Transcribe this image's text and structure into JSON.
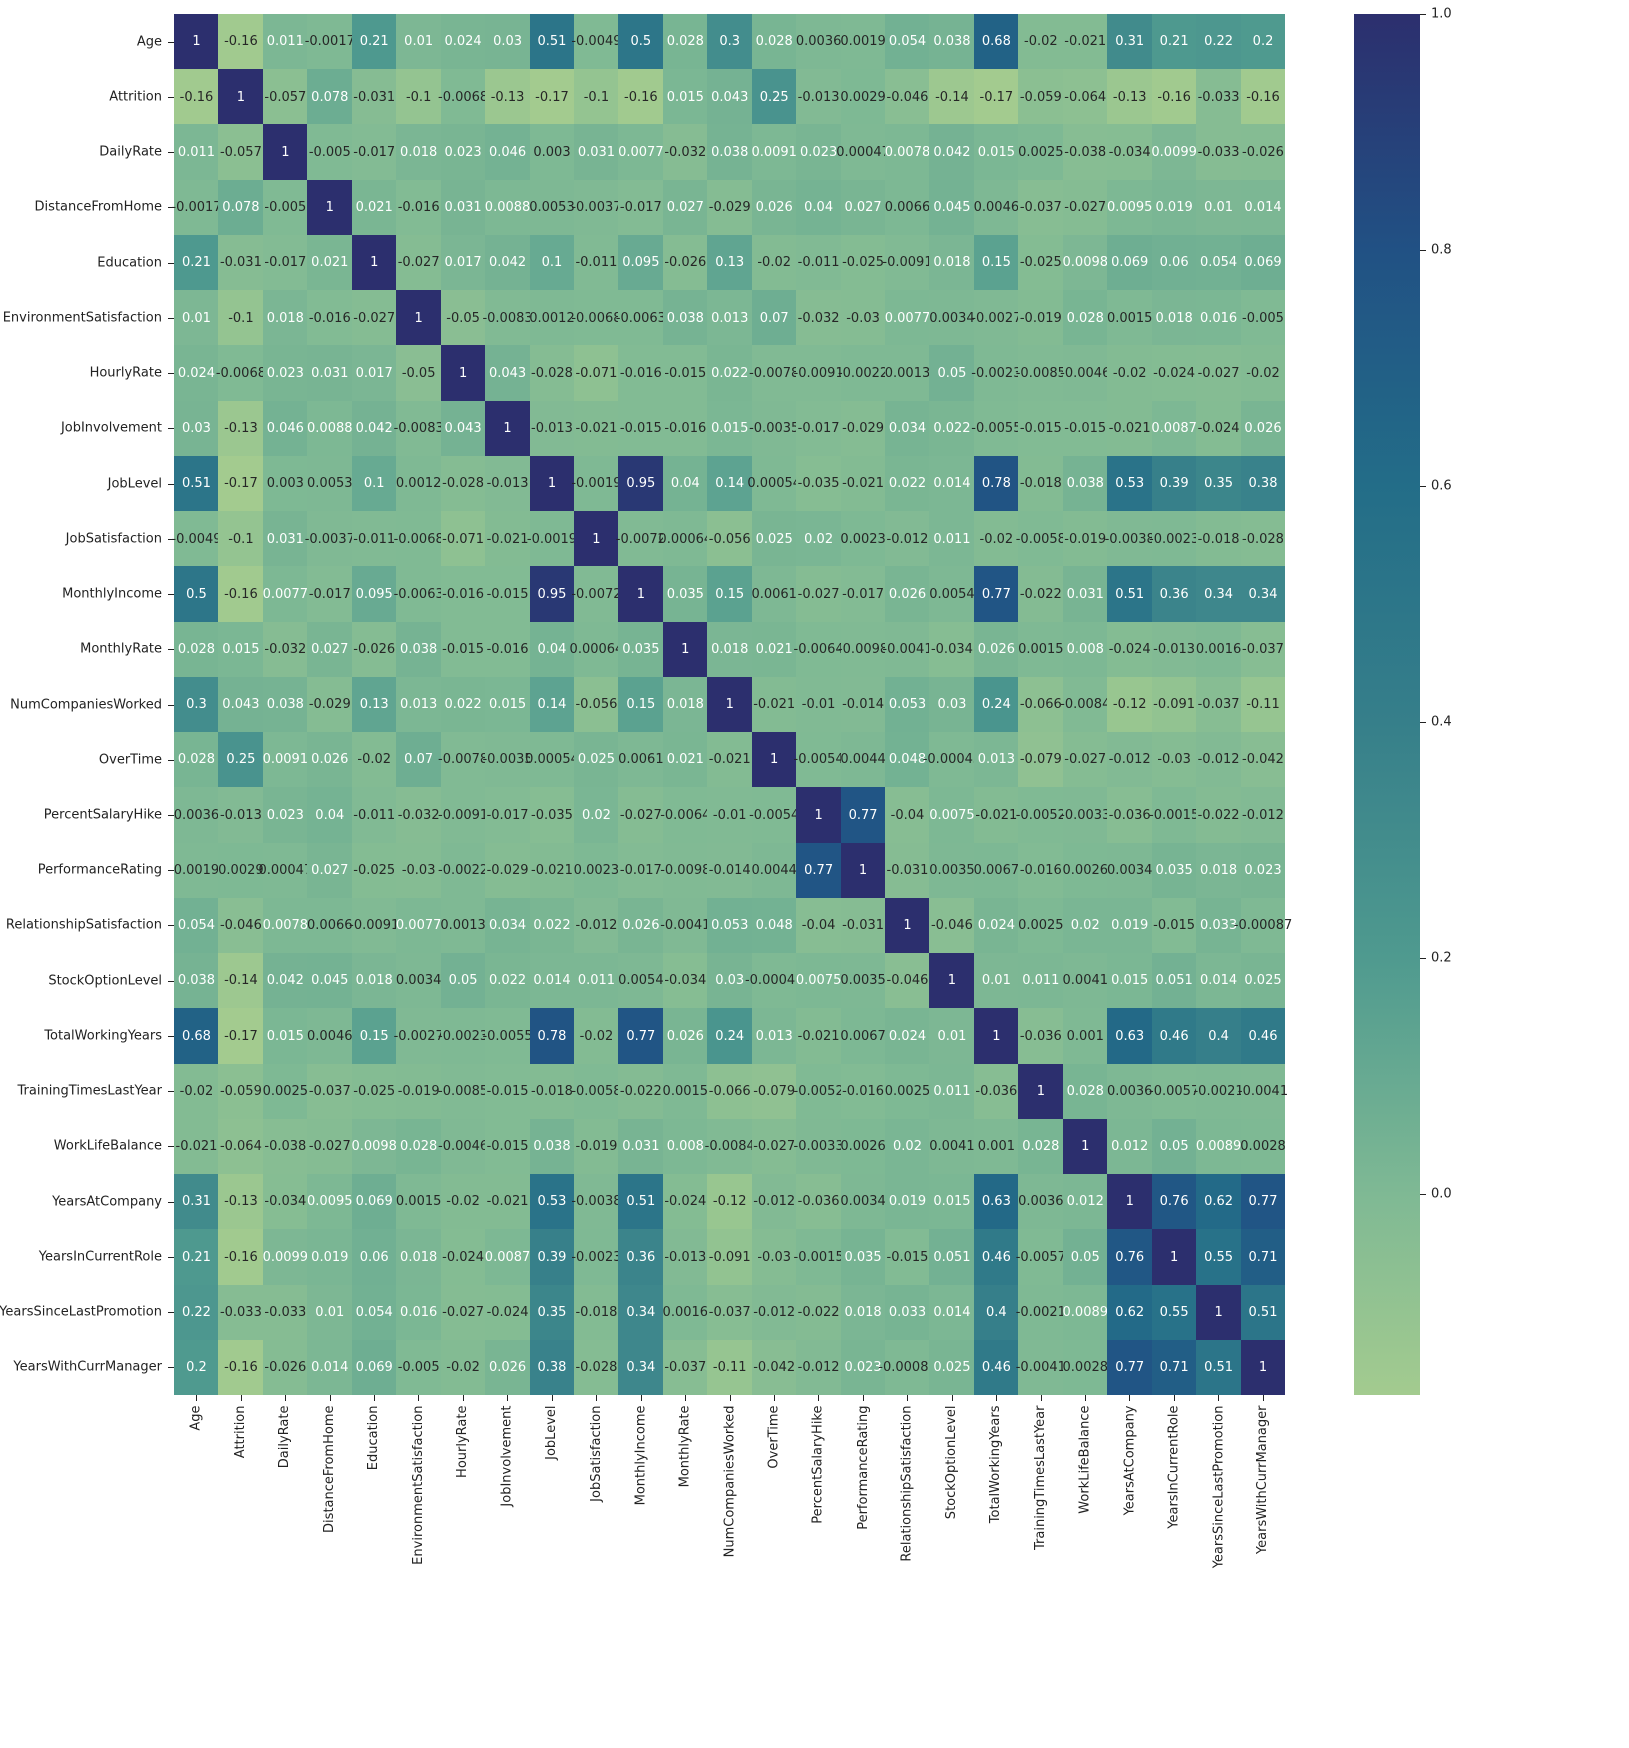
{
  "chart_data": {
    "type": "heatmap",
    "title": "",
    "xlabel": "",
    "ylabel": "",
    "colormap": "crest",
    "vmin": -0.17,
    "vmax": 1.0,
    "colorbar": {
      "ticks": [
        1.0,
        0.8,
        0.6,
        0.4,
        0.2,
        0.0
      ],
      "tick_labels": [
        "1.0",
        "0.8",
        "0.6",
        "0.4",
        "0.2",
        "0.0"
      ]
    },
    "labels": [
      "Age",
      "Attrition",
      "DailyRate",
      "DistanceFromHome",
      "Education",
      "EnvironmentSatisfaction",
      "HourlyRate",
      "JobInvolvement",
      "JobLevel",
      "JobSatisfaction",
      "MonthlyIncome",
      "MonthlyRate",
      "NumCompaniesWorked",
      "OverTime",
      "PercentSalaryHike",
      "PerformanceRating",
      "RelationshipSatisfaction",
      "StockOptionLevel",
      "TotalWorkingYears",
      "TrainingTimesLastYear",
      "WorkLifeBalance",
      "YearsAtCompany",
      "YearsInCurrentRole",
      "YearsSinceLastPromotion",
      "YearsWithCurrManager"
    ],
    "matrix": [
      [
        "1",
        "-0.16",
        "0.011",
        "-0.0017",
        "0.21",
        "0.01",
        "0.024",
        "0.03",
        "0.51",
        "-0.0049",
        "0.5",
        "0.028",
        "0.3",
        "0.028",
        "0.0036",
        "0.0019",
        "0.054",
        "0.038",
        "0.68",
        "-0.02",
        "-0.021",
        "0.31",
        "0.21",
        "0.22",
        "0.2"
      ],
      [
        "-0.16",
        "1",
        "-0.057",
        "0.078",
        "-0.031",
        "-0.1",
        "-0.0068",
        "-0.13",
        "-0.17",
        "-0.1",
        "-0.16",
        "0.015",
        "0.043",
        "0.25",
        "-0.013",
        "0.0029",
        "-0.046",
        "-0.14",
        "-0.17",
        "-0.059",
        "-0.064",
        "-0.13",
        "-0.16",
        "-0.033",
        "-0.16"
      ],
      [
        "0.011",
        "-0.057",
        "1",
        "-0.005",
        "-0.017",
        "0.018",
        "0.023",
        "0.046",
        "0.003",
        "0.031",
        "0.0077",
        "-0.032",
        "0.038",
        "0.0091",
        "0.023",
        "0.00047",
        "0.0078",
        "0.042",
        "0.015",
        "0.0025",
        "-0.038",
        "-0.034",
        "0.0099",
        "-0.033",
        "-0.026"
      ],
      [
        "-0.0017",
        "0.078",
        "-0.005",
        "1",
        "0.021",
        "-0.016",
        "0.031",
        "0.0088",
        "0.0053",
        "-0.0037",
        "-0.017",
        "0.027",
        "-0.029",
        "0.026",
        "0.04",
        "0.027",
        "0.0066",
        "0.045",
        "0.0046",
        "-0.037",
        "-0.027",
        "0.0095",
        "0.019",
        "0.01",
        "0.014"
      ],
      [
        "0.21",
        "-0.031",
        "-0.017",
        "0.021",
        "1",
        "-0.027",
        "0.017",
        "0.042",
        "0.1",
        "-0.011",
        "0.095",
        "-0.026",
        "0.13",
        "-0.02",
        "-0.011",
        "-0.025",
        "-0.0091",
        "0.018",
        "0.15",
        "-0.025",
        "0.0098",
        "0.069",
        "0.06",
        "0.054",
        "0.069"
      ],
      [
        "0.01",
        "-0.1",
        "0.018",
        "-0.016",
        "-0.027",
        "1",
        "-0.05",
        "-0.0083",
        "0.0012",
        "-0.0068",
        "-0.0063",
        "0.038",
        "0.013",
        "0.07",
        "-0.032",
        "-0.03",
        "0.0077",
        "0.0034",
        "-0.0027",
        "-0.019",
        "0.028",
        "0.0015",
        "0.018",
        "0.016",
        "-0.005"
      ],
      [
        "0.024",
        "-0.0068",
        "0.023",
        "0.031",
        "0.017",
        "-0.05",
        "1",
        "0.043",
        "-0.028",
        "-0.071",
        "-0.016",
        "-0.015",
        "0.022",
        "-0.0078",
        "-0.0091",
        "-0.0022",
        "0.0013",
        "0.05",
        "-0.0023",
        "-0.0085",
        "-0.0046",
        "-0.02",
        "-0.024",
        "-0.027",
        "-0.02"
      ],
      [
        "0.03",
        "-0.13",
        "0.046",
        "0.0088",
        "0.042",
        "-0.0083",
        "0.043",
        "1",
        "-0.013",
        "-0.021",
        "-0.015",
        "-0.016",
        "0.015",
        "-0.0035",
        "-0.017",
        "-0.029",
        "0.034",
        "0.022",
        "-0.0055",
        "-0.015",
        "-0.015",
        "-0.021",
        "0.0087",
        "-0.024",
        "0.026"
      ],
      [
        "0.51",
        "-0.17",
        "0.003",
        "0.0053",
        "0.1",
        "0.0012",
        "-0.028",
        "-0.013",
        "1",
        "-0.0019",
        "0.95",
        "0.04",
        "0.14",
        "0.00054",
        "-0.035",
        "-0.021",
        "0.022",
        "0.014",
        "0.78",
        "-0.018",
        "0.038",
        "0.53",
        "0.39",
        "0.35",
        "0.38"
      ],
      [
        "-0.0049",
        "-0.1",
        "0.031",
        "-0.0037",
        "-0.011",
        "-0.0068",
        "-0.071",
        "-0.021",
        "-0.0019",
        "1",
        "-0.0072",
        "0.00064",
        "-0.056",
        "0.025",
        "0.02",
        "0.0023",
        "-0.012",
        "0.011",
        "-0.02",
        "-0.0058",
        "-0.019",
        "-0.0038",
        "-0.0023",
        "-0.018",
        "-0.028"
      ],
      [
        "0.5",
        "-0.16",
        "0.0077",
        "-0.017",
        "0.095",
        "-0.0063",
        "-0.016",
        "-0.015",
        "0.95",
        "-0.0072",
        "1",
        "0.035",
        "0.15",
        "0.0061",
        "-0.027",
        "-0.017",
        "0.026",
        "0.0054",
        "0.77",
        "-0.022",
        "0.031",
        "0.51",
        "0.36",
        "0.34",
        "0.34"
      ],
      [
        "0.028",
        "0.015",
        "-0.032",
        "0.027",
        "-0.026",
        "0.038",
        "-0.015",
        "-0.016",
        "0.04",
        "0.00064",
        "0.035",
        "1",
        "0.018",
        "0.021",
        "-0.0064",
        "-0.0098",
        "-0.0041",
        "-0.034",
        "0.026",
        "0.0015",
        "0.008",
        "-0.024",
        "-0.013",
        "0.0016",
        "-0.037"
      ],
      [
        "0.3",
        "0.043",
        "0.038",
        "-0.029",
        "0.13",
        "0.013",
        "0.022",
        "0.015",
        "0.14",
        "-0.056",
        "0.15",
        "0.018",
        "1",
        "-0.021",
        "-0.01",
        "-0.014",
        "0.053",
        "0.03",
        "0.24",
        "-0.066",
        "-0.0084",
        "-0.12",
        "-0.091",
        "-0.037",
        "-0.11"
      ],
      [
        "0.028",
        "0.25",
        "0.0091",
        "0.026",
        "-0.02",
        "0.07",
        "-0.0078",
        "-0.0035",
        "0.00054",
        "0.025",
        "0.0061",
        "0.021",
        "-0.021",
        "1",
        "-0.0054",
        "0.0044",
        "0.048",
        "-0.00045",
        "0.013",
        "-0.079",
        "-0.027",
        "-0.012",
        "-0.03",
        "-0.012",
        "-0.042"
      ],
      [
        "0.0036",
        "-0.013",
        "0.023",
        "0.04",
        "-0.011",
        "-0.032",
        "-0.0091",
        "-0.017",
        "-0.035",
        "0.02",
        "-0.027",
        "-0.0064",
        "-0.01",
        "-0.0054",
        "1",
        "0.77",
        "-0.04",
        "0.0075",
        "-0.021",
        "-0.0052",
        "-0.0033",
        "-0.036",
        "-0.0015",
        "-0.022",
        "-0.012"
      ],
      [
        "0.0019",
        "0.0029",
        "0.00047",
        "0.027",
        "-0.025",
        "-0.03",
        "-0.0022",
        "-0.029",
        "-0.021",
        "0.0023",
        "-0.017",
        "-0.0098",
        "-0.014",
        "0.0044",
        "0.77",
        "1",
        "-0.031",
        "0.0035",
        "0.0067",
        "-0.016",
        "0.0026",
        "0.0034",
        "0.035",
        "0.018",
        "0.023"
      ],
      [
        "0.054",
        "-0.046",
        "0.0078",
        "0.0066",
        "-0.0091",
        "0.0077",
        "0.0013",
        "0.034",
        "0.022",
        "-0.012",
        "0.026",
        "-0.0041",
        "0.053",
        "0.048",
        "-0.04",
        "-0.031",
        "1",
        "-0.046",
        "0.024",
        "0.0025",
        "0.02",
        "0.019",
        "-0.015",
        "0.033",
        "-0.00087"
      ],
      [
        "0.038",
        "-0.14",
        "0.042",
        "0.045",
        "0.018",
        "0.0034",
        "0.05",
        "0.022",
        "0.014",
        "0.011",
        "0.0054",
        "-0.034",
        "0.03",
        "-0.00045",
        "0.0075",
        "0.0035",
        "-0.046",
        "1",
        "0.01",
        "0.011",
        "0.0041",
        "0.015",
        "0.051",
        "0.014",
        "0.025"
      ],
      [
        "0.68",
        "-0.17",
        "0.015",
        "0.0046",
        "0.15",
        "-0.0027",
        "-0.0023",
        "-0.0055",
        "0.78",
        "-0.02",
        "0.77",
        "0.026",
        "0.24",
        "0.013",
        "-0.021",
        "0.0067",
        "0.024",
        "0.01",
        "1",
        "-0.036",
        "0.001",
        "0.63",
        "0.46",
        "0.4",
        "0.46"
      ],
      [
        "-0.02",
        "-0.059",
        "0.0025",
        "-0.037",
        "-0.025",
        "-0.019",
        "-0.0085",
        "-0.015",
        "-0.018",
        "-0.0058",
        "-0.022",
        "0.0015",
        "-0.066",
        "-0.079",
        "-0.0052",
        "-0.016",
        "0.0025",
        "0.011",
        "-0.036",
        "1",
        "0.028",
        "0.0036",
        "-0.0057",
        "-0.0021",
        "-0.0041"
      ],
      [
        "-0.021",
        "-0.064",
        "-0.038",
        "-0.027",
        "0.0098",
        "0.028",
        "-0.0046",
        "-0.015",
        "0.038",
        "-0.019",
        "0.031",
        "0.008",
        "-0.0084",
        "-0.027",
        "-0.0033",
        "0.0026",
        "0.02",
        "0.0041",
        "0.001",
        "0.028",
        "1",
        "0.012",
        "0.05",
        "0.0089",
        "0.0028"
      ],
      [
        "0.31",
        "-0.13",
        "-0.034",
        "0.0095",
        "0.069",
        "0.0015",
        "-0.02",
        "-0.021",
        "0.53",
        "-0.0038",
        "0.51",
        "-0.024",
        "-0.12",
        "-0.012",
        "-0.036",
        "0.0034",
        "0.019",
        "0.015",
        "0.63",
        "0.0036",
        "0.012",
        "1",
        "0.76",
        "0.62",
        "0.77"
      ],
      [
        "0.21",
        "-0.16",
        "0.0099",
        "0.019",
        "0.06",
        "0.018",
        "-0.024",
        "0.0087",
        "0.39",
        "-0.0023",
        "0.36",
        "-0.013",
        "-0.091",
        "-0.03",
        "-0.0015",
        "0.035",
        "-0.015",
        "0.051",
        "0.46",
        "-0.0057",
        "0.05",
        "0.76",
        "1",
        "0.55",
        "0.71"
      ],
      [
        "0.22",
        "-0.033",
        "-0.033",
        "0.01",
        "0.054",
        "0.016",
        "-0.027",
        "-0.024",
        "0.35",
        "-0.018",
        "0.34",
        "0.0016",
        "-0.037",
        "-0.012",
        "-0.022",
        "0.018",
        "0.033",
        "0.014",
        "0.4",
        "-0.0021",
        "0.0089",
        "0.62",
        "0.55",
        "1",
        "0.51"
      ],
      [
        "0.2",
        "-0.16",
        "-0.026",
        "0.014",
        "0.069",
        "-0.005",
        "-0.02",
        "0.026",
        "0.38",
        "-0.028",
        "0.34",
        "-0.037",
        "-0.11",
        "-0.042",
        "-0.012",
        "0.023",
        "-0.00087",
        "0.025",
        "0.46",
        "-0.0041",
        "0.0028",
        "0.77",
        "0.71",
        "0.51",
        "1"
      ]
    ],
    "layout": {
      "grid": false,
      "legend": "colorbar-right",
      "annotations": "cell values annotated"
    }
  },
  "colors": {
    "stops": [
      [
        -0.17,
        "#a3cb8f"
      ],
      [
        0.0,
        "#7fb994"
      ],
      [
        0.2,
        "#4f9a8f"
      ],
      [
        0.4,
        "#367f8a"
      ],
      [
        0.6,
        "#236d88"
      ],
      [
        0.8,
        "#215184"
      ],
      [
        1.0,
        "#2c2f6e"
      ]
    ],
    "text_dark": "#262626",
    "text_light": "#ffffff"
  }
}
